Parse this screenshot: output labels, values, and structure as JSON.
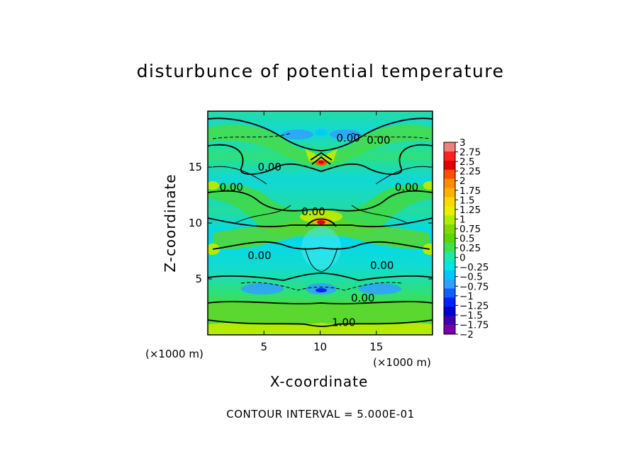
{
  "chart_data": {
    "type": "heatmap",
    "title": "disturbunce of potential temperature",
    "xlabel": "X-coordinate",
    "ylabel": "Z-coordinate",
    "x_unit": "(×1000 m)",
    "y_unit": "(×1000 m)",
    "xlim": [
      0,
      20
    ],
    "ylim": [
      0,
      20
    ],
    "x_ticks": [
      5,
      10,
      15
    ],
    "y_ticks": [
      5,
      10,
      15
    ],
    "contour_interval_text": "CONTOUR INTERVAL = 5.000E-01",
    "colorbar": {
      "levels": [
        3,
        2.75,
        2.5,
        2.25,
        2,
        1.75,
        1.5,
        1.25,
        1,
        0.75,
        0.5,
        0.25,
        0,
        -0.25,
        -0.5,
        -0.75,
        -1,
        -1.25,
        -1.5,
        -1.75,
        -2
      ],
      "labels": [
        "3",
        "2.75",
        "2.5",
        "2.25",
        "2",
        "1.75",
        "1.5",
        "1.25",
        "1",
        "0.75",
        "0.5",
        "0.25",
        "0",
        "−0.25",
        "−0.5",
        "−0.75",
        "−1",
        "−1.25",
        "−1.5",
        "−1.75",
        "−2"
      ],
      "colors": [
        "#f08080",
        "#ff2020",
        "#e00000",
        "#ff5000",
        "#ff8c00",
        "#ffb000",
        "#ffd800",
        "#e8f000",
        "#b4ec00",
        "#80dc00",
        "#5ad800",
        "#40e050",
        "#20e8a8",
        "#00e6e6",
        "#00c8ff",
        "#30a0ff",
        "#1060ff",
        "#0020ff",
        "#0000d0",
        "#4000b0",
        "#7800a8"
      ]
    },
    "contour_labels": [
      {
        "text": "0.00",
        "x": 12.5,
        "z": 17.6
      },
      {
        "text": "0.00",
        "x": 15.2,
        "z": 17.4
      },
      {
        "text": "0.00",
        "x": 5.5,
        "z": 15.0
      },
      {
        "text": "0.00",
        "x": 2.1,
        "z": 13.2
      },
      {
        "text": "0.00",
        "x": 17.7,
        "z": 13.2
      },
      {
        "text": "0.00",
        "x": 9.4,
        "z": 11.0
      },
      {
        "text": "0.00",
        "x": 4.6,
        "z": 7.1
      },
      {
        "text": "0.00",
        "x": 15.5,
        "z": 6.2
      },
      {
        "text": "0.00",
        "x": 13.8,
        "z": 3.3
      },
      {
        "text": "1.00",
        "x": 12.1,
        "z": 1.1
      }
    ]
  }
}
